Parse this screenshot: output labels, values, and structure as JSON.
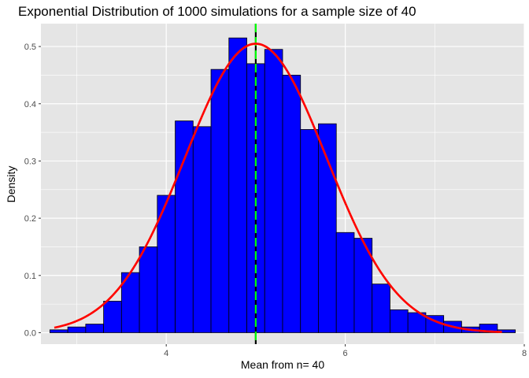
{
  "chart_data": {
    "type": "bar",
    "title": "Exponential Distribution of 1000 simulations for a sample size of 40",
    "xlabel": "Mean from n= 40",
    "ylabel": "Density",
    "xlim": [
      2.6,
      8.0
    ],
    "ylim": [
      -0.02,
      0.54
    ],
    "x_ticks": [
      4,
      6,
      8
    ],
    "x_minor_ticks": [
      3,
      5,
      7
    ],
    "y_ticks": [
      0.0,
      0.1,
      0.2,
      0.3,
      0.4,
      0.5
    ],
    "grid": true,
    "colors": {
      "panel": "#e5e5e5",
      "grid": "#ffffff",
      "bar_fill": "#0000ff",
      "bar_outline": "#000000",
      "mean_line": "#00ff00",
      "theoretical_curve": "#ffa500",
      "sample_curve": "#ff0000"
    },
    "histogram": {
      "bin_width": 0.2,
      "bin_starts": [
        2.7,
        2.9,
        3.1,
        3.3,
        3.5,
        3.7,
        3.9,
        4.1,
        4.3,
        4.5,
        4.7,
        4.9,
        5.1,
        5.3,
        5.5,
        5.7,
        5.9,
        6.1,
        6.3,
        6.5,
        6.7,
        6.9,
        7.1,
        7.3,
        7.5,
        7.7
      ],
      "densities": [
        0.005,
        0.01,
        0.015,
        0.055,
        0.105,
        0.15,
        0.24,
        0.37,
        0.36,
        0.46,
        0.515,
        0.47,
        0.495,
        0.45,
        0.355,
        0.365,
        0.175,
        0.165,
        0.085,
        0.04,
        0.035,
        0.03,
        0.02,
        0.01,
        0.015,
        0.005
      ]
    },
    "mean_line_x": 5.0,
    "theoretical_curve": {
      "mean": 5.0,
      "sd": 0.7906
    },
    "sample_curve": {
      "mean": 5.0,
      "sd": 0.79,
      "peak": 0.505,
      "x_range": [
        2.75,
        7.75
      ]
    }
  }
}
